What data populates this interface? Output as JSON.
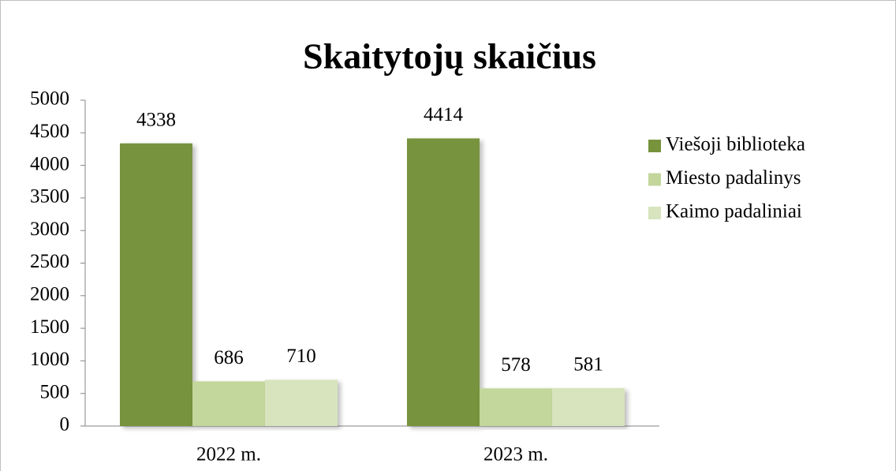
{
  "chart_data": {
    "type": "bar",
    "title": "Skaitytojų skaičius",
    "categories": [
      "2022 m.",
      "2023 m."
    ],
    "series": [
      {
        "name": "Viešoji biblioteka",
        "color": "#77933c",
        "values": [
          4338,
          4414
        ]
      },
      {
        "name": "Miesto padalinys",
        "color": "#c3d69b",
        "values": [
          686,
          578
        ]
      },
      {
        "name": "Kaimo padaliniai",
        "color": "#d7e4bd",
        "values": [
          710,
          581
        ]
      }
    ],
    "ylim": [
      0,
      5000
    ],
    "yticks": [
      0,
      500,
      1000,
      1500,
      2000,
      2500,
      3000,
      3500,
      4000,
      4500,
      5000
    ],
    "grid": false,
    "legend": "right",
    "data_labels": true
  }
}
